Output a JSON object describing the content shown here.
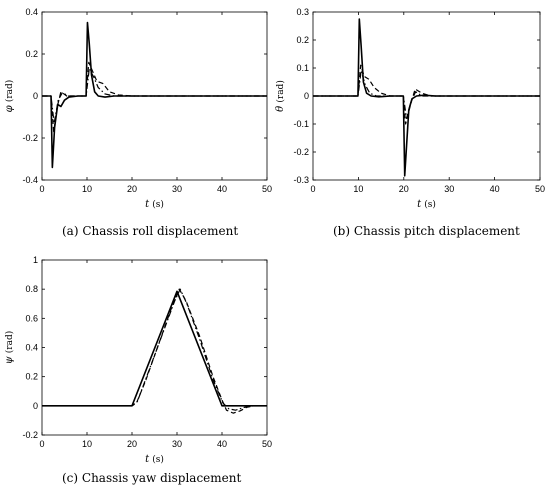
{
  "chart_data": [
    {
      "type": "line",
      "caption": "(a)  Chassis roll displacement",
      "ylabel_symbol": "φ",
      "ylabel_unit": "(rad)",
      "xlabel_symbol": "t",
      "xlabel_unit": "(s)",
      "xlim": [
        0,
        50
      ],
      "ylim": [
        -0.4,
        0.4
      ],
      "xticks": [
        0,
        10,
        20,
        30,
        40,
        50
      ],
      "yticks": [
        -0.4,
        -0.2,
        0,
        0.2,
        0.4
      ],
      "grid": false,
      "series": [
        {
          "style": "solid",
          "x": [
            0,
            2,
            2.3,
            2.8,
            3.5,
            4.2,
            5,
            6,
            8,
            9.8,
            10.1,
            10.5,
            11,
            11.7,
            12.5,
            14,
            16,
            20,
            50
          ],
          "y": [
            0,
            0,
            -0.34,
            -0.15,
            -0.04,
            -0.05,
            -0.02,
            -0.005,
            0,
            0,
            0.35,
            0.25,
            0.1,
            0.02,
            0,
            -0.005,
            0,
            0,
            0
          ]
        },
        {
          "style": "dashed",
          "x": [
            0,
            2,
            2.6,
            3.4,
            4.2,
            5.5,
            8,
            9.8,
            10.4,
            11.2,
            12.2,
            13.5,
            15,
            17,
            20,
            50
          ],
          "y": [
            0,
            0,
            -0.17,
            -0.05,
            0.02,
            0,
            0,
            0,
            0.16,
            0.12,
            0.07,
            0.06,
            0.02,
            0.005,
            0,
            0
          ]
        },
        {
          "style": "dashdot",
          "x": [
            0,
            2,
            2.7,
            3.6,
            4.5,
            6,
            8,
            9.8,
            10.5,
            11.5,
            12.5,
            14,
            16,
            20,
            50
          ],
          "y": [
            0,
            0,
            -0.13,
            -0.02,
            0.015,
            0,
            0,
            0,
            0.13,
            0.09,
            0.04,
            0.01,
            0,
            0,
            0
          ]
        }
      ]
    },
    {
      "type": "line",
      "caption": "(b)  Chassis pitch displacement",
      "ylabel_symbol": "θ",
      "ylabel_unit": "(rad)",
      "xlabel_symbol": "t",
      "xlabel_unit": "(s)",
      "xlim": [
        0,
        50
      ],
      "ylim": [
        -0.3,
        0.3
      ],
      "xticks": [
        0,
        10,
        20,
        30,
        40,
        50
      ],
      "yticks": [
        -0.3,
        -0.2,
        -0.1,
        0,
        0.1,
        0.2,
        0.3
      ],
      "grid": false,
      "series": [
        {
          "style": "solid",
          "x": [
            0,
            9.9,
            10.2,
            10.6,
            11.1,
            11.8,
            12.8,
            14.5,
            17,
            19.9,
            20.2,
            20.6,
            21.1,
            21.8,
            22.8,
            24.5,
            27,
            50
          ],
          "y": [
            0,
            0,
            0.275,
            0.18,
            0.05,
            0.01,
            0,
            -0.003,
            0,
            0,
            -0.285,
            -0.18,
            -0.05,
            -0.01,
            0,
            0.003,
            0,
            0
          ]
        },
        {
          "style": "dashed",
          "x": [
            0,
            9.9,
            10.5,
            11.3,
            12.3,
            13.5,
            15,
            17,
            19.9,
            20.4,
            21.5,
            22.5,
            24,
            26,
            50
          ],
          "y": [
            0,
            0,
            0.11,
            0.07,
            0.06,
            0.03,
            0.01,
            0,
            0,
            -0.1,
            -0.03,
            0.025,
            0.01,
            0,
            0
          ]
        },
        {
          "style": "dashdot",
          "x": [
            0,
            9.9,
            10.6,
            11.5,
            12.5,
            14,
            16,
            19.9,
            20.6,
            21.6,
            22.6,
            24,
            26,
            50
          ],
          "y": [
            0,
            0,
            0.09,
            0.04,
            0.01,
            0,
            0,
            0,
            -0.08,
            -0.02,
            0.015,
            0,
            0,
            0
          ]
        }
      ]
    },
    {
      "type": "line",
      "caption": "(c)  Chassis yaw displacement",
      "ylabel_symbol": "ψ",
      "ylabel_unit": "(rad)",
      "xlabel_symbol": "t",
      "xlabel_unit": "(s)",
      "xlim": [
        0,
        50
      ],
      "ylim": [
        -0.2,
        1
      ],
      "xticks": [
        0,
        10,
        20,
        30,
        40,
        50
      ],
      "yticks": [
        -0.2,
        0,
        0.2,
        0.4,
        0.6,
        0.8,
        1
      ],
      "grid": false,
      "series": [
        {
          "style": "solid",
          "x": [
            0,
            20,
            30,
            40,
            50
          ],
          "y": [
            0,
            0,
            0.785,
            0,
            0
          ]
        },
        {
          "style": "dashed",
          "x": [
            0,
            20,
            21,
            23,
            26,
            29,
            30.5,
            32,
            35,
            38,
            40,
            41,
            42.5,
            44,
            45.5,
            47,
            50
          ],
          "y": [
            0,
            0,
            0.02,
            0.17,
            0.43,
            0.69,
            0.8,
            0.72,
            0.48,
            0.2,
            0.04,
            -0.03,
            -0.05,
            -0.035,
            -0.01,
            0,
            0
          ]
        },
        {
          "style": "dashdot",
          "x": [
            0,
            20,
            21.2,
            23.5,
            26.5,
            29.5,
            30.7,
            32.2,
            35,
            38,
            40.2,
            41.5,
            43,
            45,
            47,
            50
          ],
          "y": [
            0,
            0,
            0.03,
            0.22,
            0.47,
            0.72,
            0.8,
            0.7,
            0.46,
            0.18,
            0.02,
            -0.02,
            -0.03,
            -0.01,
            0,
            0
          ]
        }
      ]
    }
  ]
}
